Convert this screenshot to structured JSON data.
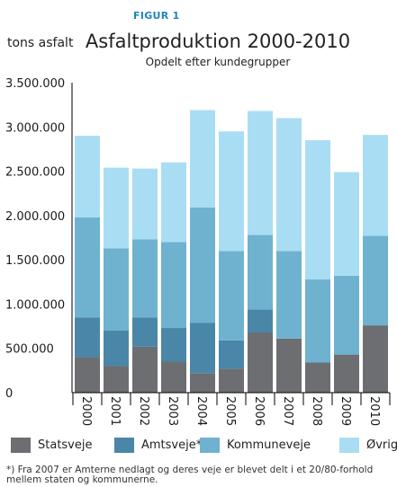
{
  "figure_label": "FIGUR 1",
  "footnote": {
    "line1": "*) Fra 2007 er Amterne nedlagt og deres veje er blevet delt i et 20/80-forhold",
    "line2": "mellem staten og kommunerne."
  },
  "colors": {
    "statsveje": "#6d6e71",
    "amtsveje": "#4a86a8",
    "kommuneveje": "#6fb2cf",
    "ovrige": "#a9ddf4",
    "axis": "#000000"
  },
  "chart_data": {
    "type": "bar",
    "stacked": true,
    "title": "Asfaltproduktion 2000-2010",
    "subtitle": "Opdelt efter kundegrupper",
    "xlabel": "",
    "ylabel": "tons asfalt",
    "ylim": [
      0,
      3500000
    ],
    "yticks": [
      "0",
      "500.000",
      "1.000.000",
      "1.500.000",
      "2.000.000",
      "2.500.000",
      "3.000.000",
      "3.500.000"
    ],
    "ytick_values": [
      0,
      500000,
      1000000,
      1500000,
      2000000,
      2500000,
      3000000,
      3500000
    ],
    "grid": false,
    "legend_position": "bottom",
    "categories": [
      "2000",
      "2001",
      "2002",
      "2003",
      "2004",
      "2005",
      "2006",
      "2007",
      "2008",
      "2009",
      "2010"
    ],
    "series": [
      {
        "name": "Statsveje",
        "color_key": "statsveje",
        "values": [
          400000,
          300000,
          520000,
          350000,
          220000,
          270000,
          680000,
          610000,
          340000,
          430000,
          760000
        ]
      },
      {
        "name": "Amtsveje*",
        "color_key": "amtsveje",
        "values": [
          450000,
          400000,
          330000,
          380000,
          570000,
          320000,
          260000,
          0,
          0,
          0,
          0
        ]
      },
      {
        "name": "Kommuneveje",
        "color_key": "kommuneveje",
        "values": [
          1130000,
          930000,
          880000,
          970000,
          1300000,
          1010000,
          840000,
          990000,
          940000,
          890000,
          1010000
        ]
      },
      {
        "name": "Øvrige",
        "color_key": "ovrige",
        "values": [
          920000,
          910000,
          800000,
          900000,
          1100000,
          1350000,
          1400000,
          1500000,
          1570000,
          1170000,
          1140000
        ]
      }
    ]
  }
}
